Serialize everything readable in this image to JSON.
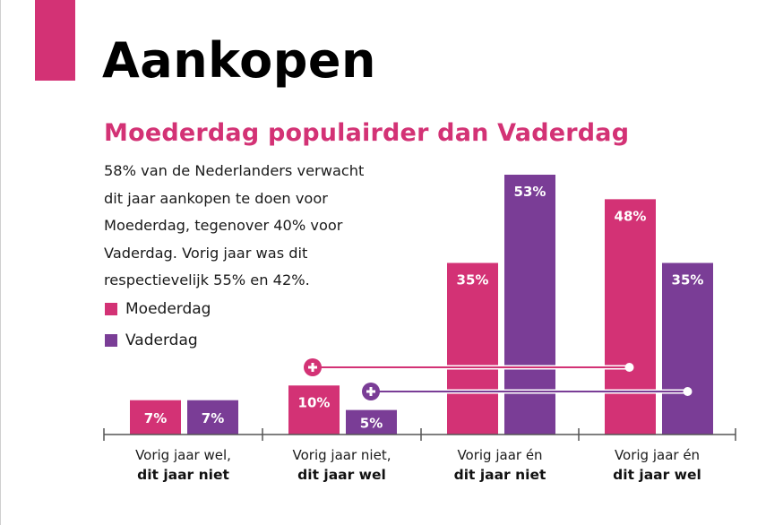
{
  "page": {
    "title": "Aankopen",
    "subtitle": "Moederdag populairder dan Vaderdag",
    "body_lines": [
      "58% van de Nederlanders verwacht",
      "dit jaar aankopen te doen voor",
      "Moederdag, tegenover 40% voor",
      "Vaderdag. Vorig jaar was dit",
      "respectievelijk 55% en 42%."
    ],
    "colors": {
      "accent": "#d33275",
      "moederdag": "#d33275",
      "vaderdag": "#7a3d96",
      "axis": "#555555"
    }
  },
  "chart_data": {
    "type": "bar",
    "title": "Moederdag populairder dan Vaderdag",
    "xlabel": "",
    "ylabel": "",
    "ylim": [
      0,
      60
    ],
    "grid": false,
    "legend_position": "left",
    "categories": [
      {
        "line1": "Vorig jaar wel,",
        "line2": "dit jaar niet"
      },
      {
        "line1": "Vorig jaar niet,",
        "line2": "dit jaar wel"
      },
      {
        "line1": "Vorig jaar én",
        "line2": "dit jaar niet"
      },
      {
        "line1": "Vorig jaar én",
        "line2": "dit jaar wel"
      }
    ],
    "series": [
      {
        "name": "Moederdag",
        "color": "#d33275",
        "values": [
          7,
          10,
          35,
          48
        ],
        "labels": [
          "7%",
          "10%",
          "35%",
          "48%"
        ]
      },
      {
        "name": "Vaderdag",
        "color": "#7a3d96",
        "values": [
          7,
          5,
          53,
          35
        ],
        "labels": [
          "7%",
          "5%",
          "53%",
          "35%"
        ]
      }
    ],
    "annotations": [
      {
        "series": "Moederdag",
        "from_category": 1,
        "to_category": 3,
        "icon": "plus-icon",
        "meaning": "added up: 10% + 48% = 58%"
      },
      {
        "series": "Vaderdag",
        "from_category": 1,
        "to_category": 3,
        "icon": "plus-icon",
        "meaning": "added up: 5% + 35% = 40%"
      }
    ]
  }
}
